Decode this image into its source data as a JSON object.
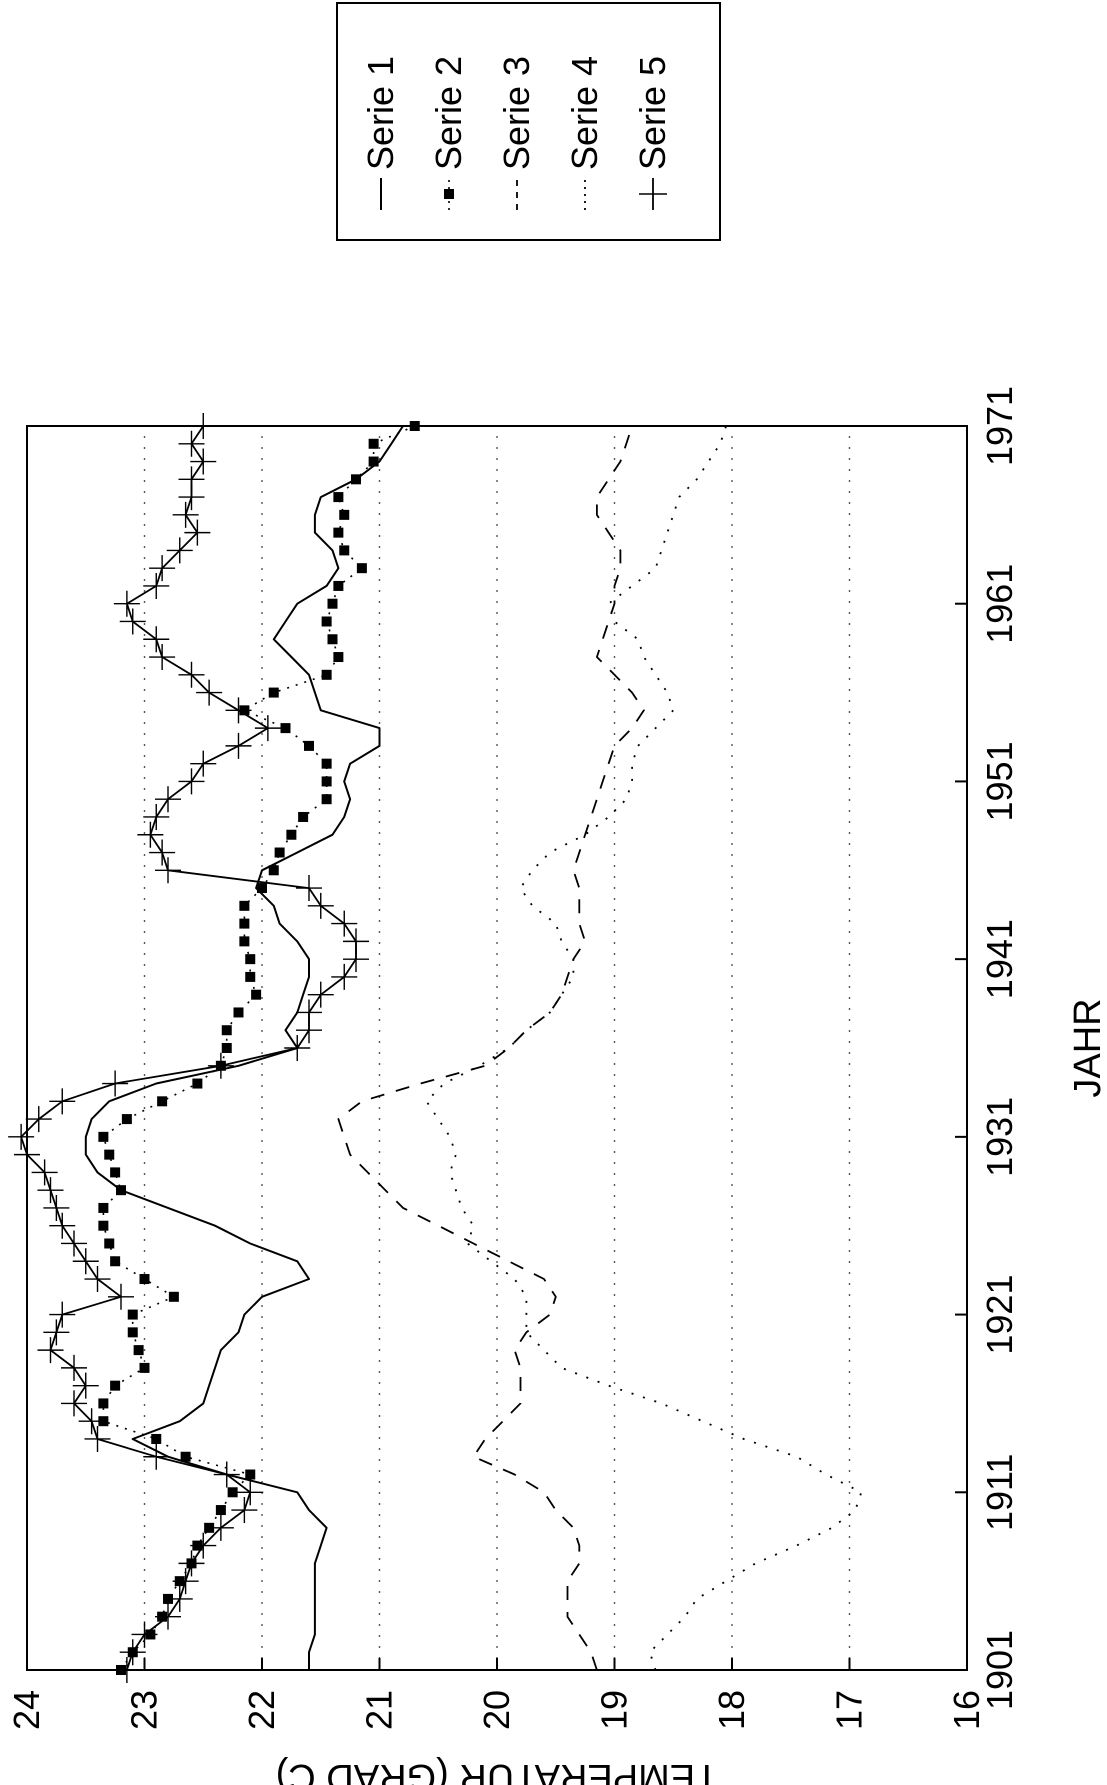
{
  "chart_data": {
    "type": "line",
    "xlabel": "JAHR",
    "ylabel": "TEMPERATUR (GRAD C)",
    "xlim": [
      1901,
      1971
    ],
    "ylim": [
      16,
      24
    ],
    "x_ticks": [
      "1901",
      "1911",
      "1921",
      "1931",
      "1941",
      "1951",
      "1961",
      "1971"
    ],
    "y_ticks": [
      "16",
      "17",
      "18",
      "19",
      "20",
      "21",
      "22",
      "23",
      "24"
    ],
    "grid": "horizontal dotted at 17, 18, 19, 20, 21, 22, 23",
    "legend_position": "top-right, outside plot",
    "x": [
      1901,
      1902,
      1903,
      1904,
      1905,
      1906,
      1907,
      1908,
      1909,
      1910,
      1911,
      1912,
      1913,
      1914,
      1915,
      1916,
      1917,
      1918,
      1919,
      1920,
      1921,
      1922,
      1923,
      1924,
      1925,
      1926,
      1927,
      1928,
      1929,
      1930,
      1931,
      1932,
      1933,
      1934,
      1935,
      1936,
      1937,
      1938,
      1939,
      1940,
      1941,
      1942,
      1943,
      1944,
      1945,
      1946,
      1947,
      1948,
      1949,
      1950,
      1951,
      1952,
      1953,
      1954,
      1955,
      1956,
      1957,
      1958,
      1959,
      1960,
      1961,
      1962,
      1963,
      1964,
      1965,
      1966,
      1967,
      1968,
      1969,
      1970,
      1971
    ],
    "series": [
      {
        "name": "Serie 1",
        "style": "solid",
        "values": [
          21.6,
          21.6,
          21.55,
          21.55,
          21.55,
          21.55,
          21.55,
          21.5,
          21.45,
          21.6,
          21.7,
          22.3,
          22.8,
          23.1,
          22.7,
          22.5,
          22.45,
          22.4,
          22.35,
          22.2,
          22.15,
          22.0,
          21.6,
          21.7,
          22.1,
          22.4,
          22.8,
          23.2,
          23.4,
          23.5,
          23.5,
          23.45,
          23.3,
          22.9,
          22.2,
          21.7,
          21.8,
          21.7,
          21.65,
          21.6,
          21.6,
          21.7,
          21.85,
          21.9,
          22.05,
          22.0,
          21.7,
          21.4,
          21.3,
          21.25,
          21.3,
          21.25,
          21.0,
          21.0,
          21.5,
          21.55,
          21.6,
          21.75,
          21.9,
          21.8,
          21.7,
          21.45,
          21.35,
          21.4,
          21.55,
          21.55,
          21.5,
          21.2,
          21.0,
          20.9,
          20.8
        ]
      },
      {
        "name": "Serie 2",
        "style": "dotted-square-markers",
        "values": [
          23.2,
          23.1,
          22.95,
          22.85,
          22.8,
          22.7,
          22.6,
          22.55,
          22.45,
          22.35,
          22.25,
          22.1,
          22.65,
          22.9,
          23.35,
          23.35,
          23.25,
          23.0,
          23.05,
          23.1,
          23.1,
          22.75,
          23.0,
          23.25,
          23.3,
          23.35,
          23.35,
          23.2,
          23.25,
          23.3,
          23.35,
          23.15,
          22.85,
          22.55,
          22.35,
          22.3,
          22.3,
          22.2,
          22.05,
          22.1,
          22.1,
          22.15,
          22.15,
          22.15,
          22.0,
          21.9,
          21.85,
          21.75,
          21.65,
          21.45,
          21.45,
          21.45,
          21.6,
          21.8,
          22.15,
          21.9,
          21.45,
          21.35,
          21.4,
          21.45,
          21.4,
          21.35,
          21.15,
          21.3,
          21.35,
          21.3,
          21.35,
          21.2,
          21.05,
          21.05,
          20.7
        ]
      },
      {
        "name": "Serie 3",
        "style": "dashed",
        "values": [
          19.15,
          19.2,
          19.3,
          19.4,
          19.4,
          19.4,
          19.3,
          19.3,
          19.35,
          19.5,
          19.6,
          19.85,
          20.2,
          20.1,
          19.95,
          19.8,
          19.8,
          19.8,
          19.85,
          19.75,
          19.55,
          19.5,
          19.6,
          19.9,
          20.2,
          20.5,
          20.8,
          20.95,
          21.1,
          21.25,
          21.3,
          21.35,
          21.15,
          20.65,
          20.1,
          19.9,
          19.75,
          19.55,
          19.45,
          19.4,
          19.35,
          19.25,
          19.3,
          19.3,
          19.3,
          19.35,
          19.3,
          19.25,
          19.2,
          19.15,
          19.1,
          19.05,
          19.0,
          18.85,
          18.75,
          18.85,
          19.0,
          19.15,
          19.1,
          19.05,
          19.0,
          19.0,
          18.95,
          18.95,
          19.05,
          19.15,
          19.15,
          19.05,
          18.95,
          18.9,
          18.85
        ]
      },
      {
        "name": "Serie 4",
        "style": "dotted",
        "values": [
          18.65,
          18.7,
          18.55,
          18.4,
          18.3,
          18.05,
          17.8,
          17.45,
          17.15,
          16.95,
          16.9,
          17.2,
          17.45,
          17.9,
          18.25,
          18.6,
          19.05,
          19.45,
          19.6,
          19.75,
          19.75,
          19.75,
          19.85,
          20.05,
          20.25,
          20.2,
          20.3,
          20.35,
          20.4,
          20.35,
          20.4,
          20.5,
          20.6,
          20.45,
          20.15,
          19.9,
          19.75,
          19.55,
          19.45,
          19.35,
          19.35,
          19.45,
          19.5,
          19.7,
          19.8,
          19.7,
          19.55,
          19.25,
          19.05,
          18.9,
          18.85,
          18.85,
          18.8,
          18.65,
          18.5,
          18.55,
          18.65,
          18.75,
          18.8,
          19.0,
          19.05,
          18.85,
          18.65,
          18.6,
          18.55,
          18.5,
          18.45,
          18.3,
          18.2,
          18.1,
          18.05
        ]
      },
      {
        "name": "Serie 5",
        "style": "solid-plus-markers",
        "values": [
          23.15,
          23.1,
          23.0,
          22.8,
          22.7,
          22.65,
          22.6,
          22.5,
          22.35,
          22.15,
          22.1,
          22.3,
          22.9,
          23.4,
          23.45,
          23.6,
          23.5,
          23.6,
          23.8,
          23.75,
          23.7,
          23.2,
          23.4,
          23.5,
          23.6,
          23.7,
          23.75,
          23.8,
          23.85,
          24.0,
          24.05,
          23.9,
          23.7,
          23.25,
          22.35,
          21.7,
          21.6,
          21.6,
          21.5,
          21.3,
          21.2,
          21.2,
          21.3,
          21.5,
          21.6,
          22.8,
          22.85,
          22.95,
          22.9,
          22.8,
          22.6,
          22.5,
          22.2,
          21.95,
          22.2,
          22.45,
          22.6,
          22.85,
          22.9,
          23.1,
          23.15,
          22.9,
          22.85,
          22.7,
          22.55,
          22.65,
          22.6,
          22.6,
          22.5,
          22.6,
          22.5
        ]
      }
    ]
  }
}
